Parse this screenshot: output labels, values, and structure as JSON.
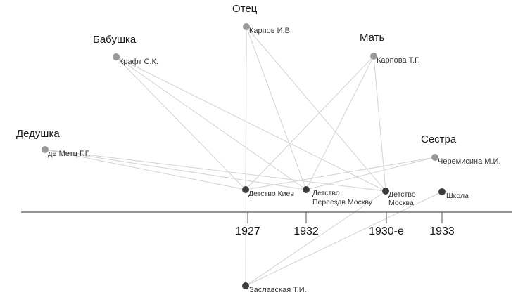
{
  "people": [
    {
      "id": "otets",
      "role": "Отец",
      "name": "Карпов И.В."
    },
    {
      "id": "babushka",
      "role": "Бабушка",
      "name": "Крафт С.К."
    },
    {
      "id": "mat",
      "role": "Мать",
      "name": "Карпова Т.Г."
    },
    {
      "id": "dedushka",
      "role": "Дедушка",
      "name": "де Метц Г.Г."
    },
    {
      "id": "sestra",
      "role": "Сестра",
      "name": "Черемисина М.И."
    },
    {
      "id": "zaslavskaya",
      "role": "",
      "name": "Заславская Т.И."
    }
  ],
  "events": [
    {
      "id": "kiev",
      "lines": [
        "Детство Киев"
      ]
    },
    {
      "id": "pereezd",
      "lines": [
        "Детство",
        "Переездв Москву"
      ]
    },
    {
      "id": "moskva",
      "lines": [
        "Детство",
        "Москва"
      ]
    },
    {
      "id": "shkola",
      "lines": [
        "Школа"
      ]
    }
  ],
  "timeline": {
    "years": [
      "1927",
      "1932",
      "1930-е",
      "1933"
    ]
  },
  "colors": {
    "person_node": "#9a9a9a",
    "event_node": "#3c3c3c",
    "edge": "#d2d2d2",
    "axis": "#555555"
  },
  "edges": [
    [
      "dedushka",
      "kiev"
    ],
    [
      "dedushka",
      "pereezd"
    ],
    [
      "dedushka",
      "moskva"
    ],
    [
      "babushka",
      "kiev"
    ],
    [
      "babushka",
      "pereezd"
    ],
    [
      "babushka",
      "moskva"
    ],
    [
      "otets",
      "kiev"
    ],
    [
      "otets",
      "pereezd"
    ],
    [
      "otets",
      "moskva"
    ],
    [
      "mat",
      "kiev"
    ],
    [
      "mat",
      "pereezd"
    ],
    [
      "mat",
      "moskva"
    ],
    [
      "sestra",
      "kiev"
    ],
    [
      "sestra",
      "pereezd"
    ],
    [
      "zaslavskaya",
      "otets"
    ],
    [
      "zaslavskaya",
      "moskva"
    ],
    [
      "zaslavskaya",
      "shkola"
    ]
  ]
}
